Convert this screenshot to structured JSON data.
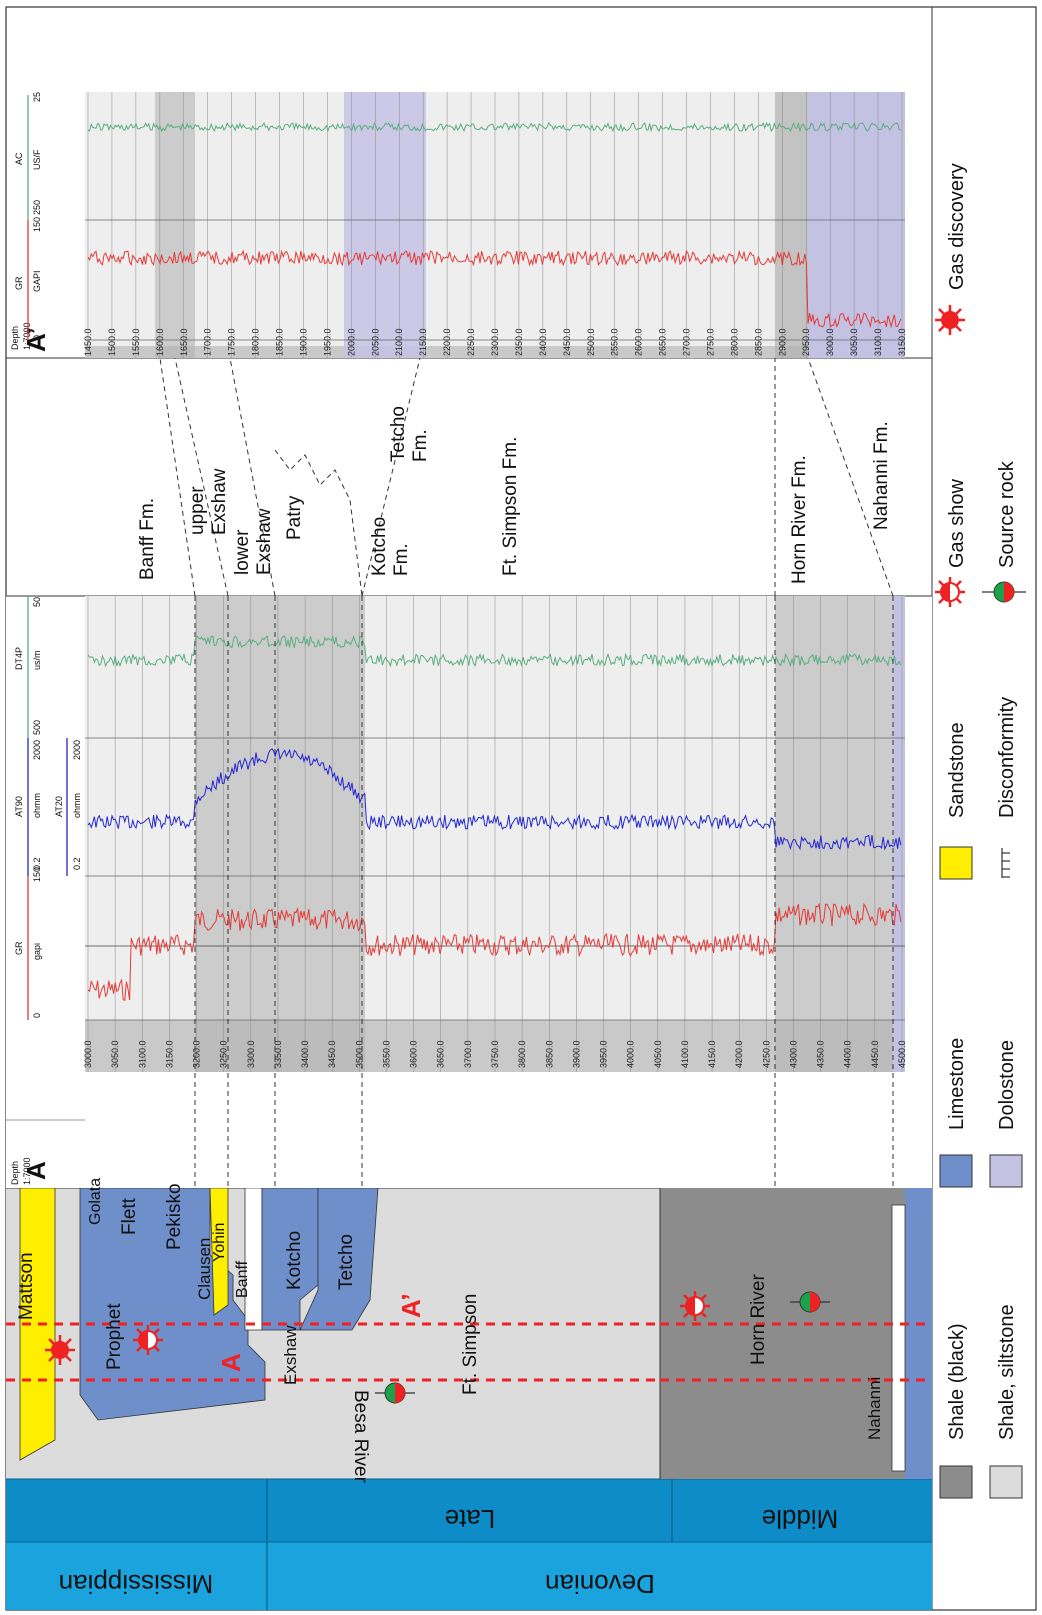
{
  "periods": [
    "Mississippian",
    "Devonian"
  ],
  "epochs": [
    "Late",
    "Middle"
  ],
  "formations": {
    "mattson": "Mattson",
    "golata": "Golata",
    "flett": "Flett",
    "prophet": "Prophet",
    "pekisko": "Pekisko",
    "clausen": "Clausen",
    "yohin": "Yohin",
    "banff": "Banff",
    "kotcho": "Kotcho",
    "tetcho": "Tetcho",
    "exshaw": "Exshaw",
    "ft_simpson": "Ft. Simpson",
    "besa_river": "Besa River",
    "horn_river": "Horn River",
    "nahanni": "Nahanni"
  },
  "section": {
    "a": "A",
    "a_prime": "A’"
  },
  "correlation": {
    "banff": "Banff Fm.",
    "upper_exshaw": "upper\nExshaw",
    "lower_exshaw": "lower\nExshaw",
    "patry": "Patry",
    "kotcho": "Kotcho\nFm.",
    "tetcho": "Tetcho\nFm.",
    "ft_simpson": "Ft. Simpson Fm.",
    "horn_river": "Horn River Fm.",
    "nahanni": "Nahanni Fm."
  },
  "log_a": {
    "depth_title": "Depth",
    "scale": "1:7000",
    "gr": "GR",
    "gr_unit": "gapi",
    "gr_min": "0",
    "gr_max": "150",
    "at90": "AT90",
    "at90_unit": "ohmm",
    "at90_min": "0.2",
    "at90_max": "2000",
    "at20": "AT20",
    "at20_unit": "ohmm",
    "at20_min": "0.2",
    "at20_max": "2000",
    "dt": "DT4P",
    "dt_unit": "us/m",
    "dt_min": "500",
    "dt_max": "50",
    "depths": [
      "3000.0",
      "3050.0",
      "3100.0",
      "3150.0",
      "3200.0",
      "3250.0",
      "3300.0",
      "3350.0",
      "3400.0",
      "3450.0",
      "3500.0",
      "3550.0",
      "3600.0",
      "3650.0",
      "3700.0",
      "3750.0",
      "3800.0",
      "3850.0",
      "3900.0",
      "3950.0",
      "4000.0",
      "4050.0",
      "4100.0",
      "4150.0",
      "4200.0",
      "4250.0",
      "4300.0",
      "4350.0",
      "4400.0",
      "4450.0",
      "4500.0"
    ]
  },
  "log_b": {
    "depth_title": "Depth",
    "scale": "1:7000",
    "gr": "GR",
    "gr_unit": "GAPI",
    "gr_min": "0",
    "gr_max": "150",
    "ac": "AC",
    "ac_unit": "US/F",
    "ac_min": "250",
    "ac_max": "25",
    "depths": [
      "1450.0",
      "1500.0",
      "1550.0",
      "1600.0",
      "1650.0",
      "1700.0",
      "1750.0",
      "1800.0",
      "1850.0",
      "1900.0",
      "1950.0",
      "2000.0",
      "2050.0",
      "2100.0",
      "2150.0",
      "2200.0",
      "2250.0",
      "2300.0",
      "2350.0",
      "2400.0",
      "2450.0",
      "2500.0",
      "2550.0",
      "2600.0",
      "2650.0",
      "2700.0",
      "2750.0",
      "2800.0",
      "2850.0",
      "2900.0",
      "2950.0",
      "3000.0",
      "3050.0",
      "3100.0",
      "3150.0"
    ]
  },
  "legend": {
    "shale_black": "Shale (black)",
    "shale_silt": "Shale, siltstone",
    "limestone": "Limestone",
    "dolostone": "Dolostone",
    "sandstone": "Sandstone",
    "disconformity": "Disconformity",
    "gas_show": "Gas show",
    "source_rock": "Source rock",
    "gas_discovery": "Gas discovery"
  },
  "colors": {
    "period_band": "#1aa3dc",
    "epoch_band": "#0d8cc7",
    "shale_black": "#8c8c8c",
    "shale_light": "#dcdcdc",
    "limestone": "#6f8fca",
    "dolostone": "#c4c2e3",
    "sandstone": "#ffee00",
    "gr_curve": "#e53935",
    "res_curve": "#2226d4",
    "sonic_curve": "#5aae7f",
    "marker_red": "#ee2222",
    "source_green": "#1aa34a"
  }
}
